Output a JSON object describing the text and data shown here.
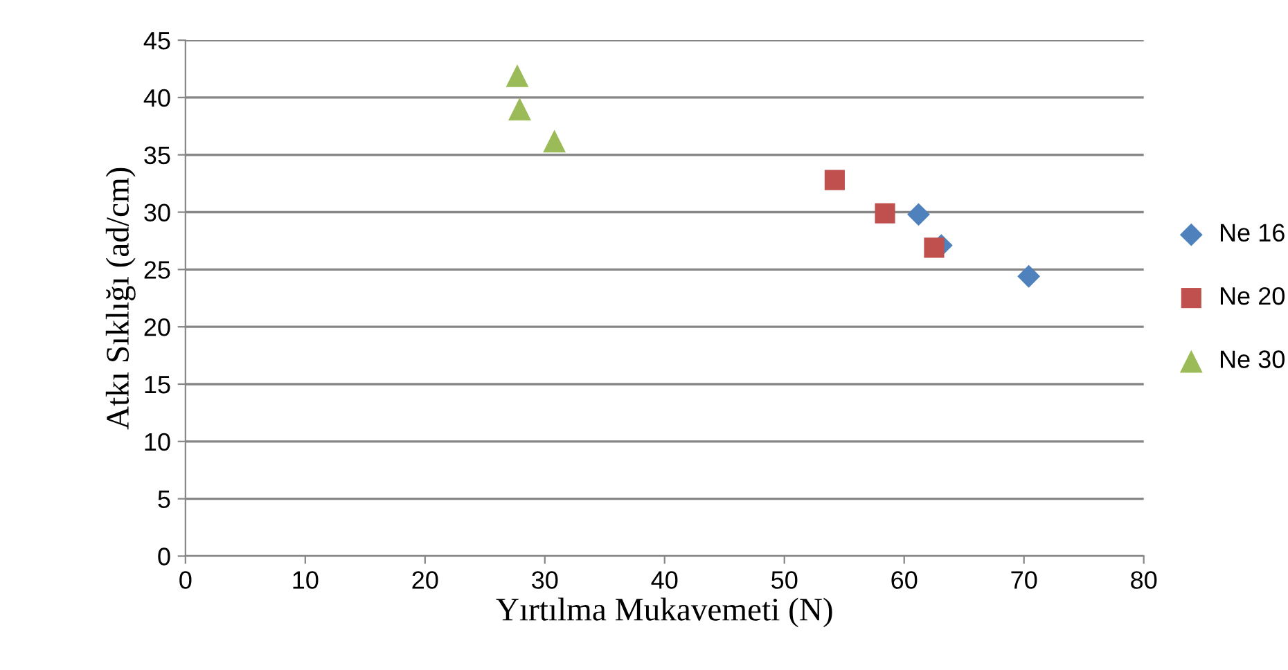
{
  "chart_data": {
    "type": "scatter",
    "xlabel": "Yırtılma Mukavemeti (N)",
    "ylabel": "Atkı Sıklığı (ad/cm)",
    "xlim": [
      0,
      80
    ],
    "xticks": [
      0,
      10,
      20,
      30,
      40,
      50,
      60,
      70,
      80
    ],
    "ylim": [
      0,
      45
    ],
    "yticks": [
      0,
      5,
      10,
      15,
      20,
      25,
      30,
      35,
      40,
      45
    ],
    "grid": "y",
    "legend": "right",
    "series": [
      {
        "name": "Ne 16",
        "color": "#4f81bd",
        "marker": "diamond",
        "x": [
          61.2,
          63.1,
          70.4
        ],
        "values": [
          29.8,
          27.1,
          24.4
        ]
      },
      {
        "name": "Ne 20",
        "color": "#c0504d",
        "marker": "square",
        "x": [
          54.2,
          58.4,
          62.5
        ],
        "values": [
          32.8,
          29.9,
          26.9
        ]
      },
      {
        "name": "Ne 30",
        "color": "#9bbb59",
        "marker": "triangle",
        "x": [
          27.7,
          27.9,
          30.8
        ],
        "values": [
          41.9,
          39.0,
          36.2
        ]
      }
    ]
  }
}
